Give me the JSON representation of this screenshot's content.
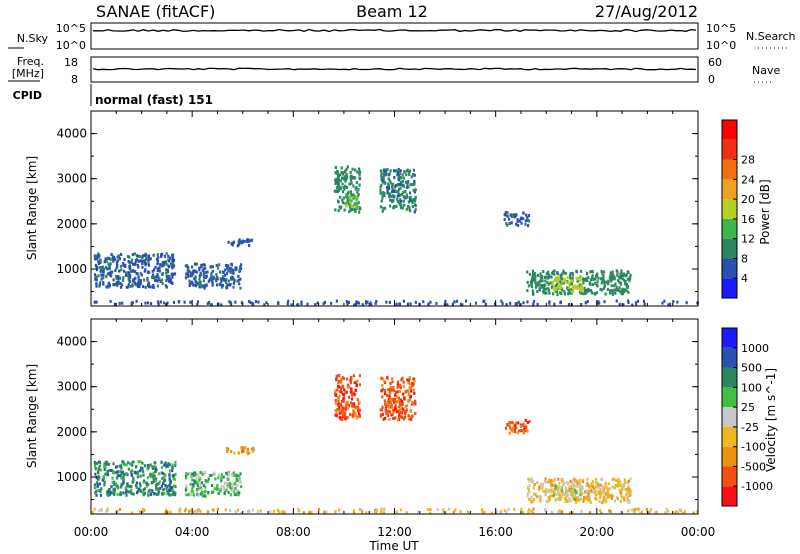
{
  "header": {
    "station": "SANAE (fitACF)",
    "beam": "Beam 12",
    "date": "27/Aug/2012"
  },
  "nsky_panel": {
    "left_label": "N.Sky",
    "right_label": "N.Search",
    "left_ticks": [
      "10^5",
      "10^0"
    ],
    "right_ticks": [
      "10^5",
      "10^0"
    ]
  },
  "freq_panel": {
    "left_label_1": "Freq.",
    "left_label_2": "[MHz]",
    "right_label": "Nave",
    "left_ticks": [
      "18",
      "8"
    ],
    "right_ticks": [
      "60",
      "0"
    ]
  },
  "cpid": {
    "label": "CPID",
    "mode": "normal (fast) 151"
  },
  "x_axis": {
    "label": "Time UT",
    "ticks": [
      "00:00",
      "04:00",
      "08:00",
      "12:00",
      "16:00",
      "20:00",
      "00:00"
    ]
  },
  "colors": {
    "power": [
      "#1a1aff",
      "#2a50b0",
      "#2a8860",
      "#3cb84a",
      "#b4d020",
      "#f0a020",
      "#f07010",
      "#f03010",
      "#ff0000"
    ],
    "velocity": [
      "#ff1010",
      "#f05010",
      "#f09010",
      "#f0b820",
      "#c8c8c8",
      "#40c040",
      "#2a8860",
      "#2a50b0",
      "#1a1aff"
    ]
  },
  "chart_data": [
    {
      "type": "heatmap",
      "name": "power",
      "ylabel": "Slant Range [km]",
      "xlabel": "",
      "xlim": [
        0,
        24
      ],
      "ylim": [
        180,
        4500
      ],
      "yticks": [
        "1000",
        "2000",
        "3000",
        "4000"
      ],
      "colorbar": {
        "label": "Power [dB]",
        "ticks": [
          "4",
          "8",
          "12",
          "16",
          "20",
          "24",
          "28"
        ],
        "range": [
          0,
          32
        ]
      },
      "clusters": [
        {
          "t0": 0.1,
          "t1": 3.3,
          "r0": 580,
          "r1": 1330,
          "v": 7
        },
        {
          "t0": 3.7,
          "t1": 5.9,
          "r0": 560,
          "r1": 1100,
          "v": 7
        },
        {
          "t0": 5.3,
          "t1": 6.4,
          "r0": 1500,
          "r1": 1650,
          "v": 6
        },
        {
          "t0": 9.6,
          "t1": 10.6,
          "r0": 2250,
          "r1": 3250,
          "v": 9
        },
        {
          "t0": 10.0,
          "t1": 10.5,
          "r0": 2350,
          "r1": 2650,
          "v": 15
        },
        {
          "t0": 11.4,
          "t1": 12.8,
          "r0": 2250,
          "r1": 3200,
          "v": 8
        },
        {
          "t0": 16.3,
          "t1": 17.3,
          "r0": 1950,
          "r1": 2250,
          "v": 7
        },
        {
          "t0": 17.2,
          "t1": 21.3,
          "r0": 420,
          "r1": 950,
          "v": 10
        },
        {
          "t0": 18.2,
          "t1": 19.4,
          "r0": 480,
          "r1": 800,
          "v": 18
        },
        {
          "t0": 0.0,
          "t1": 24.0,
          "r0": 190,
          "r1": 280,
          "v": 6
        }
      ]
    },
    {
      "type": "heatmap",
      "name": "velocity",
      "ylabel": "Slant Range [km]",
      "xlabel": "Time UT",
      "xlim": [
        0,
        24
      ],
      "ylim": [
        180,
        4500
      ],
      "yticks": [
        "1000",
        "2000",
        "3000",
        "4000"
      ],
      "colorbar": {
        "label": "Velocity [m s^-1]",
        "ticks": [
          "-1000",
          "-500",
          "-100",
          "-25",
          "25",
          "100",
          "500",
          "1000"
        ]
      },
      "clusters": [
        {
          "t0": 0.1,
          "t1": 3.3,
          "r0": 580,
          "r1": 1330,
          "v": 6
        },
        {
          "t0": 3.7,
          "t1": 5.9,
          "r0": 560,
          "r1": 1100,
          "v": 5
        },
        {
          "t0": 5.3,
          "t1": 6.4,
          "r0": 1500,
          "r1": 1650,
          "v": 2
        },
        {
          "t0": 9.6,
          "t1": 10.6,
          "r0": 2250,
          "r1": 3250,
          "v": 1
        },
        {
          "t0": 11.4,
          "t1": 12.8,
          "r0": 2250,
          "r1": 3200,
          "v": 1
        },
        {
          "t0": 16.3,
          "t1": 17.3,
          "r0": 1950,
          "r1": 2250,
          "v": 1
        },
        {
          "t0": 17.2,
          "t1": 21.3,
          "r0": 420,
          "r1": 950,
          "v": 3
        },
        {
          "t0": 18.2,
          "t1": 19.4,
          "r0": 480,
          "r1": 800,
          "v": 4
        },
        {
          "t0": 0.0,
          "t1": 24.0,
          "r0": 190,
          "r1": 280,
          "v": 3
        }
      ]
    }
  ]
}
